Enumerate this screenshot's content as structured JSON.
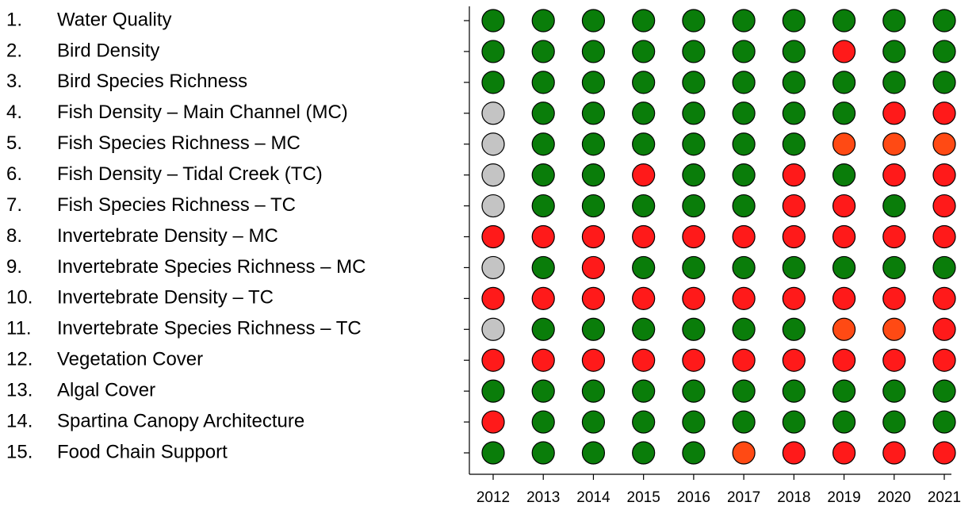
{
  "chart_data": {
    "type": "dot-matrix",
    "categories": [
      "2012",
      "2013",
      "2014",
      "2015",
      "2016",
      "2017",
      "2018",
      "2019",
      "2020",
      "2021"
    ],
    "rows": [
      {
        "number": "1.",
        "label": "Water Quality",
        "colors": [
          "#0a7d0a",
          "#0a7d0a",
          "#0a7d0a",
          "#0a7d0a",
          "#0a7d0a",
          "#0a7d0a",
          "#0a7d0a",
          "#0a7d0a",
          "#0a7d0a",
          "#0a7d0a"
        ]
      },
      {
        "number": "2.",
        "label": "Bird Density",
        "colors": [
          "#0a7d0a",
          "#0a7d0a",
          "#0a7d0a",
          "#0a7d0a",
          "#0a7d0a",
          "#0a7d0a",
          "#0a7d0a",
          "#ff1a1a",
          "#0a7d0a",
          "#0a7d0a"
        ]
      },
      {
        "number": "3.",
        "label": "Bird Species Richness",
        "colors": [
          "#0a7d0a",
          "#0a7d0a",
          "#0a7d0a",
          "#0a7d0a",
          "#0a7d0a",
          "#0a7d0a",
          "#0a7d0a",
          "#0a7d0a",
          "#0a7d0a",
          "#0a7d0a"
        ]
      },
      {
        "number": "4.",
        "label": "Fish Density – Main Channel (MC)",
        "colors": [
          "#c4c4c4",
          "#0a7d0a",
          "#0a7d0a",
          "#0a7d0a",
          "#0a7d0a",
          "#0a7d0a",
          "#0a7d0a",
          "#0a7d0a",
          "#ff1a1a",
          "#ff1a1a"
        ]
      },
      {
        "number": "5.",
        "label": "Fish Species Richness – MC",
        "colors": [
          "#c4c4c4",
          "#0a7d0a",
          "#0a7d0a",
          "#0a7d0a",
          "#0a7d0a",
          "#0a7d0a",
          "#0a7d0a",
          "#ff4a14",
          "#ff4a14",
          "#ff4a14"
        ]
      },
      {
        "number": "6.",
        "label": "Fish Density – Tidal Creek (TC)",
        "colors": [
          "#c4c4c4",
          "#0a7d0a",
          "#0a7d0a",
          "#ff1a1a",
          "#0a7d0a",
          "#0a7d0a",
          "#ff1a1a",
          "#0a7d0a",
          "#ff1a1a",
          "#ff1a1a"
        ]
      },
      {
        "number": "7.",
        "label": "Fish Species Richness – TC",
        "colors": [
          "#c4c4c4",
          "#0a7d0a",
          "#0a7d0a",
          "#0a7d0a",
          "#0a7d0a",
          "#0a7d0a",
          "#ff1a1a",
          "#ff1a1a",
          "#0a7d0a",
          "#ff1a1a"
        ]
      },
      {
        "number": "8.",
        "label": "Invertebrate Density – MC",
        "colors": [
          "#ff1a1a",
          "#ff1a1a",
          "#ff1a1a",
          "#ff1a1a",
          "#ff1a1a",
          "#ff1a1a",
          "#ff1a1a",
          "#ff1a1a",
          "#ff1a1a",
          "#ff1a1a"
        ]
      },
      {
        "number": "9.",
        "label": "Invertebrate Species Richness – MC",
        "colors": [
          "#c4c4c4",
          "#0a7d0a",
          "#ff1a1a",
          "#0a7d0a",
          "#0a7d0a",
          "#0a7d0a",
          "#0a7d0a",
          "#0a7d0a",
          "#0a7d0a",
          "#0a7d0a"
        ]
      },
      {
        "number": "10.",
        "label": "Invertebrate Density – TC",
        "colors": [
          "#ff1a1a",
          "#ff1a1a",
          "#ff1a1a",
          "#ff1a1a",
          "#ff1a1a",
          "#ff1a1a",
          "#ff1a1a",
          "#ff1a1a",
          "#ff1a1a",
          "#ff1a1a"
        ]
      },
      {
        "number": "11.",
        "label": "Invertebrate Species Richness – TC",
        "colors": [
          "#c4c4c4",
          "#0a7d0a",
          "#0a7d0a",
          "#0a7d0a",
          "#0a7d0a",
          "#0a7d0a",
          "#0a7d0a",
          "#ff4a14",
          "#ff4a14",
          "#ff1a1a"
        ]
      },
      {
        "number": "12.",
        "label": "Vegetation Cover",
        "colors": [
          "#ff1a1a",
          "#ff1a1a",
          "#ff1a1a",
          "#ff1a1a",
          "#ff1a1a",
          "#ff1a1a",
          "#ff1a1a",
          "#ff1a1a",
          "#ff1a1a",
          "#ff1a1a"
        ]
      },
      {
        "number": "13.",
        "label": "Algal Cover",
        "colors": [
          "#0a7d0a",
          "#0a7d0a",
          "#0a7d0a",
          "#0a7d0a",
          "#0a7d0a",
          "#0a7d0a",
          "#0a7d0a",
          "#0a7d0a",
          "#0a7d0a",
          "#0a7d0a"
        ]
      },
      {
        "number": "14.",
        "label": "Spartina Canopy Architecture",
        "colors": [
          "#ff1a1a",
          "#0a7d0a",
          "#0a7d0a",
          "#0a7d0a",
          "#0a7d0a",
          "#0a7d0a",
          "#0a7d0a",
          "#0a7d0a",
          "#0a7d0a",
          "#0a7d0a"
        ]
      },
      {
        "number": "15.",
        "label": "Food Chain Support",
        "colors": [
          "#0a7d0a",
          "#0a7d0a",
          "#0a7d0a",
          "#0a7d0a",
          "#0a7d0a",
          "#ff4a14",
          "#ff1a1a",
          "#ff1a1a",
          "#ff1a1a",
          "#ff1a1a"
        ]
      }
    ]
  }
}
